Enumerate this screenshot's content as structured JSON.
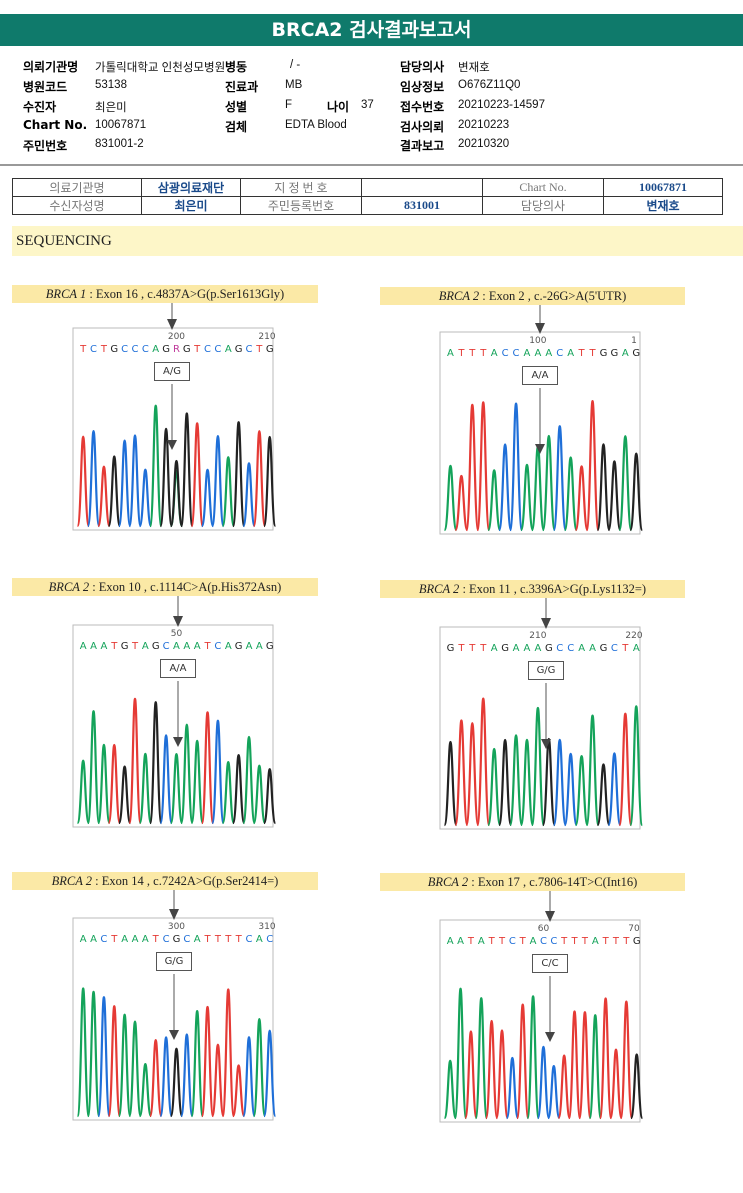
{
  "title": "BRCA2 검사결과보고서",
  "info": {
    "col1": [
      {
        "label": "의뢰기관명",
        "value": "가톨릭대학교 인천성모병원"
      },
      {
        "label": "병원코드",
        "value": "53138"
      },
      {
        "label": "수진자",
        "value": "최은미"
      },
      {
        "label": "Chart No.",
        "value": "10067871"
      },
      {
        "label": "주민번호",
        "value": "831001-2"
      }
    ],
    "ward": {
      "label": "병동",
      "value": "/ -"
    },
    "col2": [
      {
        "label": "진료과",
        "value": "MB"
      },
      {
        "label": "성별",
        "value": "F"
      },
      {
        "label": "검체",
        "value": "EDTA Blood"
      }
    ],
    "age": {
      "label": "나이",
      "value": "37"
    },
    "col3": [
      {
        "label": "담당의사",
        "value": "변재호"
      },
      {
        "label": "임상정보",
        "value": "O676Z11Q0"
      },
      {
        "label": "접수번호",
        "value": "20210223-14597"
      },
      {
        "label": "검사의뢰",
        "value": "20210223"
      },
      {
        "label": "결과보고",
        "value": "20210320"
      }
    ]
  },
  "table": {
    "r1": [
      "의료기관명",
      "삼광의료재단",
      "지 정 번 호",
      "",
      "Chart No.",
      "10067871"
    ],
    "r2": [
      "수신자성명",
      "최은미",
      "주민등록번호",
      "831001",
      "담당의사",
      "변재호"
    ]
  },
  "section": "SEQUENCING",
  "colors": {
    "A": "#14a35a",
    "C": "#1f6fd8",
    "G": "#222222",
    "T": "#e53a35",
    "R": "#c0399b",
    "header": "#0f7a6b"
  },
  "variants": [
    {
      "gene": "BRCA 1",
      "desc": " : Exon 16 , c.4837A>G(p.Ser1613Gly)",
      "seq": "TCTGCCCAGRGTCCAGCTG",
      "ticks": [
        "200",
        "210"
      ],
      "genotype": "A/G"
    },
    {
      "gene": "BRCA 2",
      "desc": " : Exon 2 , c.-26G>A(5'UTR)",
      "seq": "ATTTACCAAACATTGGAG",
      "ticks": [
        "100",
        "1"
      ],
      "genotype": "A/A"
    },
    {
      "gene": "BRCA 2",
      "desc": " : Exon 10 , c.1114C>A(p.His372Asn)",
      "seq": "AAATGTAGCAAATCAGAAG",
      "ticks": [
        "50"
      ],
      "genotype": "A/A"
    },
    {
      "gene": "BRCA 2",
      "desc": " : Exon 11 , c.3396A>G(p.Lys1132=)",
      "seq": "GTTTAGAAAGCCAAGCTA",
      "ticks": [
        "210",
        "220"
      ],
      "genotype": "G/G"
    },
    {
      "gene": "BRCA 2",
      "desc": " : Exon 14 , c.7242A>G(p.Ser2414=)",
      "seq": "AACTAAATCGCATTTTCAC",
      "ticks": [
        "300",
        "310"
      ],
      "genotype": "G/G"
    },
    {
      "gene": "BRCA 2",
      "desc": " : Exon 17 , c.7806-14T>C(Int16)",
      "seq": "AATATTCTACCTTTATTTG",
      "ticks": [
        "60",
        "70"
      ],
      "genotype": "C/C"
    }
  ]
}
